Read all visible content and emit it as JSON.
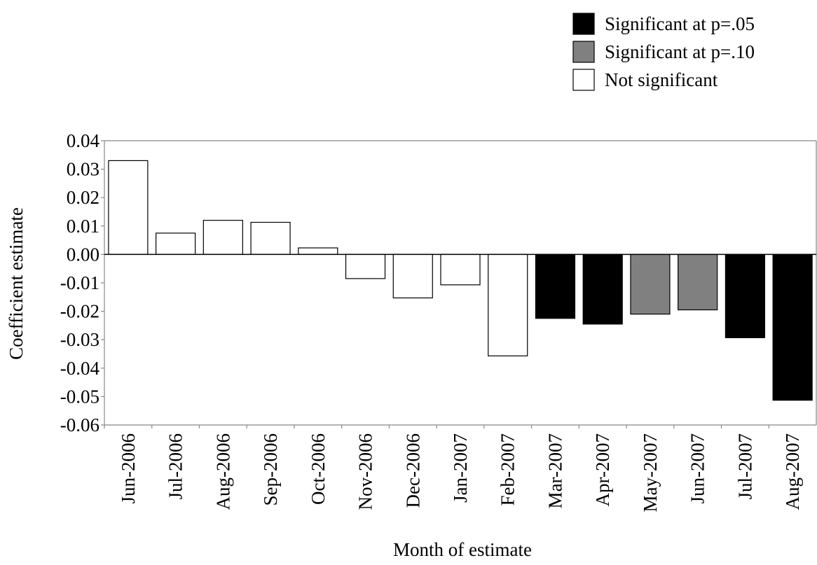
{
  "chart_data": {
    "type": "bar",
    "title": "",
    "xlabel": "Month of estimate",
    "ylabel": "Coefficient estimate",
    "ylim": [
      -0.06,
      0.04
    ],
    "yticks": [
      0.04,
      0.03,
      0.02,
      0.01,
      0.0,
      -0.01,
      -0.02,
      -0.03,
      -0.04,
      -0.05,
      -0.06
    ],
    "ytick_labels": [
      "0.04",
      "0.03",
      "0.02",
      "0.01",
      "0.00",
      "-0.01",
      "-0.02",
      "-0.03",
      "-0.04",
      "-0.05",
      "-0.06"
    ],
    "grid": false,
    "legend_position": "top-right",
    "categories": [
      "Jun-2006",
      "Jul-2006",
      "Aug-2006",
      "Sep-2006",
      "Oct-2006",
      "Nov-2006",
      "Dec-2006",
      "Jan-2007",
      "Feb-2007",
      "Mar-2007",
      "Apr-2007",
      "May-2007",
      "Jun-2007",
      "Jul-2007",
      "Aug-2007"
    ],
    "values": [
      0.033,
      0.0075,
      0.012,
      0.0113,
      0.0023,
      -0.0085,
      -0.0153,
      -0.0107,
      -0.0357,
      -0.0225,
      -0.0245,
      -0.021,
      -0.0195,
      -0.0293,
      -0.0513
    ],
    "significance": [
      "none",
      "none",
      "none",
      "none",
      "none",
      "none",
      "none",
      "none",
      "none",
      "p05",
      "p05",
      "p10",
      "p10",
      "p05",
      "p05"
    ],
    "legend": [
      {
        "key": "p05",
        "label": "Significant at p=.05",
        "color": "#000000"
      },
      {
        "key": "p10",
        "label": "Significant at p=.10",
        "color": "#808080"
      },
      {
        "key": "none",
        "label": "Not significant",
        "color": "#ffffff"
      }
    ]
  }
}
